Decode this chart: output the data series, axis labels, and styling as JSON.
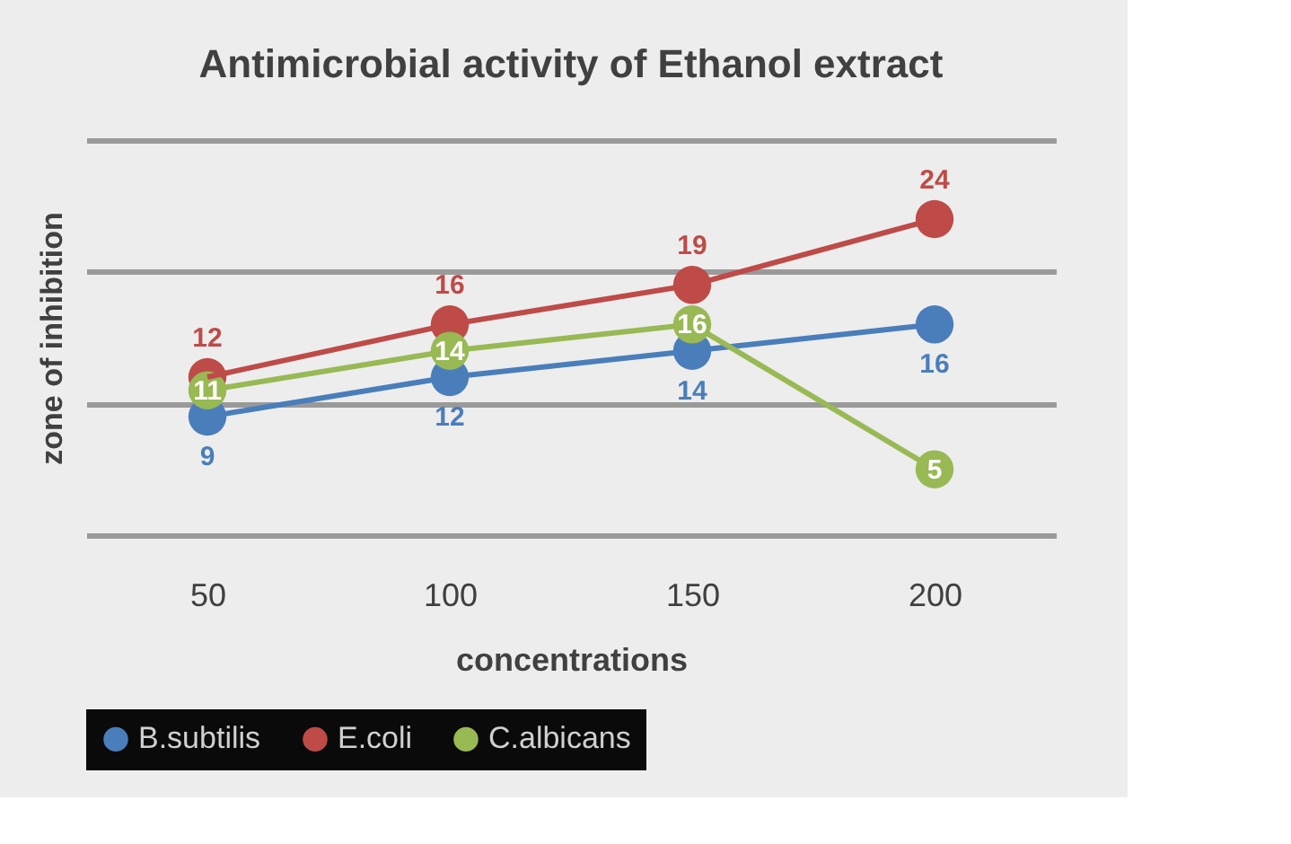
{
  "chart_data": {
    "type": "line",
    "title": "Antimicrobial activity of Ethanol extract",
    "xlabel": "concentrations",
    "ylabel": "zone of inhibition",
    "categories": [
      "50",
      "100",
      "150",
      "200"
    ],
    "series": [
      {
        "name": "B.subtilis",
        "color": "#4a7ebb",
        "values": [
          9,
          12,
          14,
          16
        ]
      },
      {
        "name": "E.coli",
        "color": "#be4b48",
        "values": [
          12,
          16,
          19,
          24
        ]
      },
      {
        "name": "C.albicans",
        "color": "#98b954",
        "values": [
          11,
          14,
          16,
          5
        ]
      }
    ],
    "ylim": [
      0,
      30
    ],
    "yticks": [
      {
        "value": 0,
        "label": null
      },
      {
        "value": 10,
        "label": null
      },
      {
        "value": 20,
        "label": null
      },
      {
        "value": 30,
        "label": null
      }
    ],
    "tick_labels": "x",
    "grid": "y",
    "legend": "bottom",
    "marker": "circle",
    "line_style": "solid",
    "data_labels": true
  }
}
